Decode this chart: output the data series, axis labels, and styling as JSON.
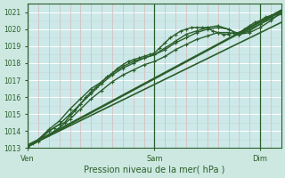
{
  "title": "",
  "xlabel": "Pression niveau de la mer( hPa )",
  "ylabel": "",
  "background_color": "#cce8e0",
  "plot_bg_color": "#cce8e8",
  "grid_major_color": "#ffffff",
  "grid_minor_v_color": "#d8b8b8",
  "grid_minor_h_color": "#c8d8d8",
  "line_color": "#2a5e2a",
  "ylim": [
    1013,
    1021.5
  ],
  "xlim": [
    0,
    48
  ],
  "yticks": [
    1013,
    1014,
    1015,
    1016,
    1017,
    1018,
    1019,
    1020,
    1021
  ],
  "xtick_labels": [
    "Ven",
    "Sam",
    "Dim"
  ],
  "xtick_positions": [
    0,
    24,
    44
  ],
  "vline_positions": [
    0,
    24,
    44
  ],
  "series": [
    {
      "x": [
        0,
        1,
        2,
        3,
        4,
        5,
        6,
        7,
        8,
        9,
        10,
        11,
        12,
        13,
        14,
        15,
        16,
        17,
        18,
        19,
        20,
        21,
        22,
        23,
        24,
        25,
        26,
        27,
        28,
        29,
        30,
        31,
        32,
        33,
        34,
        35,
        36,
        37,
        38,
        39,
        40,
        41,
        42,
        43,
        44,
        45,
        46,
        47,
        48
      ],
      "y": [
        1013.1,
        1013.3,
        1013.5,
        1013.7,
        1014.0,
        1014.2,
        1014.4,
        1014.5,
        1014.9,
        1015.2,
        1015.6,
        1016.0,
        1016.3,
        1016.6,
        1016.9,
        1017.2,
        1017.4,
        1017.7,
        1017.9,
        1018.1,
        1018.2,
        1018.3,
        1018.4,
        1018.5,
        1018.6,
        1018.9,
        1019.2,
        1019.5,
        1019.7,
        1019.9,
        1020.0,
        1020.1,
        1020.1,
        1020.1,
        1020.1,
        1019.9,
        1019.8,
        1019.7,
        1019.7,
        1019.8,
        1019.8,
        1020.0,
        1020.2,
        1020.4,
        1020.5,
        1020.7,
        1020.8,
        1020.9,
        1021.1
      ],
      "marker": "+",
      "ms": 3.5,
      "lw": 1.0
    },
    {
      "x": [
        0,
        2,
        4,
        6,
        8,
        10,
        12,
        14,
        16,
        18,
        20,
        22,
        24,
        26,
        28,
        30,
        32,
        34,
        36,
        38,
        40,
        42,
        44,
        46,
        48
      ],
      "y": [
        1013.1,
        1013.4,
        1013.8,
        1014.2,
        1014.7,
        1015.3,
        1015.9,
        1016.4,
        1016.9,
        1017.3,
        1017.6,
        1017.9,
        1018.1,
        1018.4,
        1018.8,
        1019.1,
        1019.4,
        1019.6,
        1019.8,
        1019.8,
        1019.7,
        1019.9,
        1020.3,
        1020.6,
        1020.9
      ],
      "marker": "+",
      "ms": 3.5,
      "lw": 1.0
    },
    {
      "x": [
        0,
        2,
        4,
        6,
        8,
        10,
        12,
        14,
        16,
        18,
        20,
        22,
        24,
        26,
        28,
        30,
        32,
        34,
        36,
        38,
        40,
        42,
        44,
        46,
        48
      ],
      "y": [
        1013.1,
        1013.5,
        1014.1,
        1014.6,
        1015.3,
        1015.9,
        1016.5,
        1016.9,
        1017.4,
        1017.8,
        1018.1,
        1018.3,
        1018.5,
        1018.8,
        1019.2,
        1019.5,
        1019.8,
        1020.0,
        1020.1,
        1020.0,
        1019.7,
        1019.8,
        1020.1,
        1020.5,
        1021.0
      ],
      "marker": "+",
      "ms": 3.5,
      "lw": 1.0
    },
    {
      "x": [
        0,
        2,
        4,
        6,
        8,
        10,
        12,
        14,
        16,
        18,
        20,
        22,
        24,
        26,
        28,
        30,
        32,
        34,
        36,
        38,
        40,
        42,
        44,
        46,
        48
      ],
      "y": [
        1013.2,
        1013.5,
        1014.0,
        1014.4,
        1015.0,
        1015.6,
        1016.2,
        1016.8,
        1017.3,
        1017.7,
        1018.0,
        1018.3,
        1018.5,
        1018.9,
        1019.3,
        1019.7,
        1019.9,
        1020.1,
        1020.2,
        1020.0,
        1019.7,
        1020.0,
        1020.3,
        1020.7,
        1021.0
      ],
      "marker": "+",
      "ms": 3.5,
      "lw": 1.0
    },
    {
      "x": [
        0,
        48
      ],
      "y": [
        1013.1,
        1021.1
      ],
      "marker": null,
      "ms": 0,
      "lw": 1.8
    },
    {
      "x": [
        0,
        48
      ],
      "y": [
        1013.1,
        1020.4
      ],
      "marker": null,
      "ms": 0,
      "lw": 1.2
    }
  ]
}
